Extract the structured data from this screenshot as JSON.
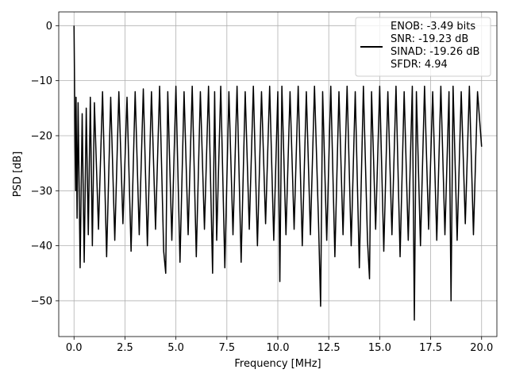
{
  "chart_data": {
    "type": "line",
    "title": "",
    "xlabel": "Frequency [MHz]",
    "ylabel": "PSD [dB]",
    "xlim": [
      -0.75,
      20.75
    ],
    "ylim": [
      -56.5,
      2.5
    ],
    "xticks": [
      0.0,
      2.5,
      5.0,
      7.5,
      10.0,
      12.5,
      15.0,
      17.5,
      20.0
    ],
    "xtick_labels": [
      "0.0",
      "2.5",
      "5.0",
      "7.5",
      "10.0",
      "12.5",
      "15.0",
      "17.5",
      "20.0"
    ],
    "yticks": [
      0,
      -10,
      -20,
      -30,
      -40,
      -50
    ],
    "ytick_labels": [
      "0",
      "−10",
      "−20",
      "−30",
      "−40",
      "−50"
    ],
    "grid": true,
    "legend_position": "top-right",
    "series": [
      {
        "name": "ENOB: -3.49 bits\nSNR: -19.23 dB\nSINAD: -19.26 dB\nSFDR: 4.94",
        "color": "#000000",
        "x": [
          0.0,
          0.02,
          0.05,
          0.08,
          0.1,
          0.15,
          0.2,
          0.3,
          0.4,
          0.5,
          0.6,
          0.7,
          0.8,
          0.9,
          1.0,
          1.2,
          1.4,
          1.6,
          1.8,
          2.0,
          2.2,
          2.4,
          2.6,
          2.8,
          3.0,
          3.2,
          3.4,
          3.6,
          3.8,
          4.0,
          4.2,
          4.4,
          4.5,
          4.6,
          4.8,
          5.0,
          5.2,
          5.4,
          5.6,
          5.8,
          6.0,
          6.2,
          6.4,
          6.6,
          6.8,
          6.9,
          7.0,
          7.2,
          7.4,
          7.6,
          7.8,
          8.0,
          8.2,
          8.4,
          8.6,
          8.8,
          9.0,
          9.2,
          9.4,
          9.6,
          9.8,
          10.0,
          10.1,
          10.2,
          10.4,
          10.6,
          10.8,
          11.0,
          11.2,
          11.4,
          11.6,
          11.8,
          12.0,
          12.1,
          12.2,
          12.4,
          12.6,
          12.8,
          13.0,
          13.2,
          13.4,
          13.6,
          13.8,
          14.0,
          14.2,
          14.4,
          14.5,
          14.6,
          14.8,
          15.0,
          15.2,
          15.4,
          15.6,
          15.8,
          16.0,
          16.2,
          16.4,
          16.6,
          16.7,
          16.8,
          17.0,
          17.2,
          17.4,
          17.6,
          17.8,
          18.0,
          18.2,
          18.4,
          18.5,
          18.6,
          18.8,
          19.0,
          19.2,
          19.4,
          19.6,
          19.8,
          20.0
        ],
        "y": [
          0.0,
          -8.0,
          -22.0,
          -30.0,
          -13.0,
          -35.0,
          -14.0,
          -44.0,
          -16.0,
          -43.0,
          -15.0,
          -38.0,
          -13.0,
          -40.0,
          -14.0,
          -37.0,
          -12.0,
          -42.0,
          -13.0,
          -39.0,
          -12.0,
          -36.0,
          -13.0,
          -41.0,
          -12.0,
          -38.0,
          -11.5,
          -40.0,
          -12.0,
          -37.0,
          -11.0,
          -41.0,
          -45.0,
          -12.0,
          -39.0,
          -11.0,
          -43.0,
          -12.0,
          -38.0,
          -11.0,
          -42.0,
          -12.0,
          -37.0,
          -11.0,
          -45.0,
          -12.0,
          -39.0,
          -11.0,
          -44.0,
          -12.0,
          -38.0,
          -11.0,
          -43.0,
          -12.0,
          -37.0,
          -11.0,
          -40.0,
          -12.0,
          -36.0,
          -11.0,
          -39.0,
          -12.0,
          -46.5,
          -11.0,
          -38.0,
          -12.0,
          -37.0,
          -11.0,
          -40.0,
          -12.0,
          -38.0,
          -11.0,
          -36.0,
          -51.0,
          -12.0,
          -39.0,
          -11.0,
          -42.0,
          -12.0,
          -38.0,
          -11.0,
          -40.0,
          -12.0,
          -44.0,
          -11.0,
          -39.0,
          -46.0,
          -12.0,
          -37.0,
          -11.0,
          -41.0,
          -12.0,
          -38.0,
          -11.0,
          -42.0,
          -12.0,
          -39.0,
          -11.0,
          -53.5,
          -12.0,
          -40.0,
          -11.0,
          -37.0,
          -12.0,
          -39.0,
          -11.0,
          -38.0,
          -12.0,
          -50.0,
          -11.0,
          -39.0,
          -12.0,
          -36.0,
          -11.0,
          -38.0,
          -12.0,
          -22.0
        ]
      }
    ]
  }
}
